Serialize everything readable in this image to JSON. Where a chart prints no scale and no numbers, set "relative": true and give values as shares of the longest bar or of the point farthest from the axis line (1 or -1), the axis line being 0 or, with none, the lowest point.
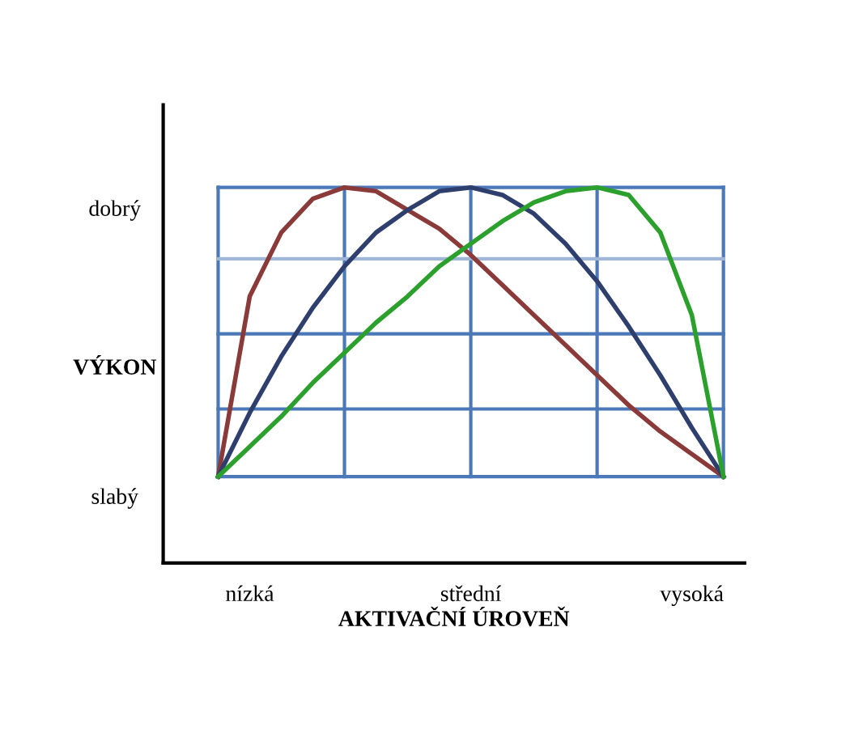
{
  "chart_data": {
    "type": "line",
    "relative": true,
    "xlabel": "AKTIVAČNÍ ÚROVEŇ",
    "ylabel": "VÝKON",
    "annotations": [
      "dobrý",
      "slabý"
    ],
    "categories": [
      null,
      "nízká",
      null,
      null,
      null,
      null,
      null,
      null,
      "střední",
      null,
      null,
      null,
      null,
      null,
      null,
      "vysoká",
      null
    ],
    "series": [
      {
        "color": "#8b3a3a",
        "values": [
          0.23,
          0.71,
          0.88,
          0.97,
          1,
          0.99,
          0.94,
          0.89,
          0.82,
          0.74,
          0.66,
          0.58,
          0.5,
          0.42,
          0.35,
          0.29,
          0.23
        ]
      },
      {
        "color": "#2e3f6e",
        "values": [
          0.23,
          0.4,
          0.55,
          0.68,
          0.79,
          0.88,
          0.94,
          0.99,
          1,
          0.98,
          0.93,
          0.85,
          0.75,
          0.63,
          0.5,
          0.36,
          0.23
        ]
      },
      {
        "color": "#2ca02c",
        "values": [
          0.23,
          0.31,
          0.39,
          0.48,
          0.56,
          0.64,
          0.71,
          0.79,
          0.85,
          0.91,
          0.96,
          0.99,
          1,
          0.98,
          0.88,
          0.66,
          0.23
        ]
      }
    ],
    "ref_lines": [
      {
        "axis": "y",
        "value": 0.41,
        "color": "#4a78b8"
      },
      {
        "axis": "y",
        "value": 0.61,
        "color": "#4a78b8"
      },
      {
        "axis": "y",
        "value": 0.81,
        "color": "#9fb6d6"
      }
    ],
    "grid": "x",
    "legend": false
  }
}
